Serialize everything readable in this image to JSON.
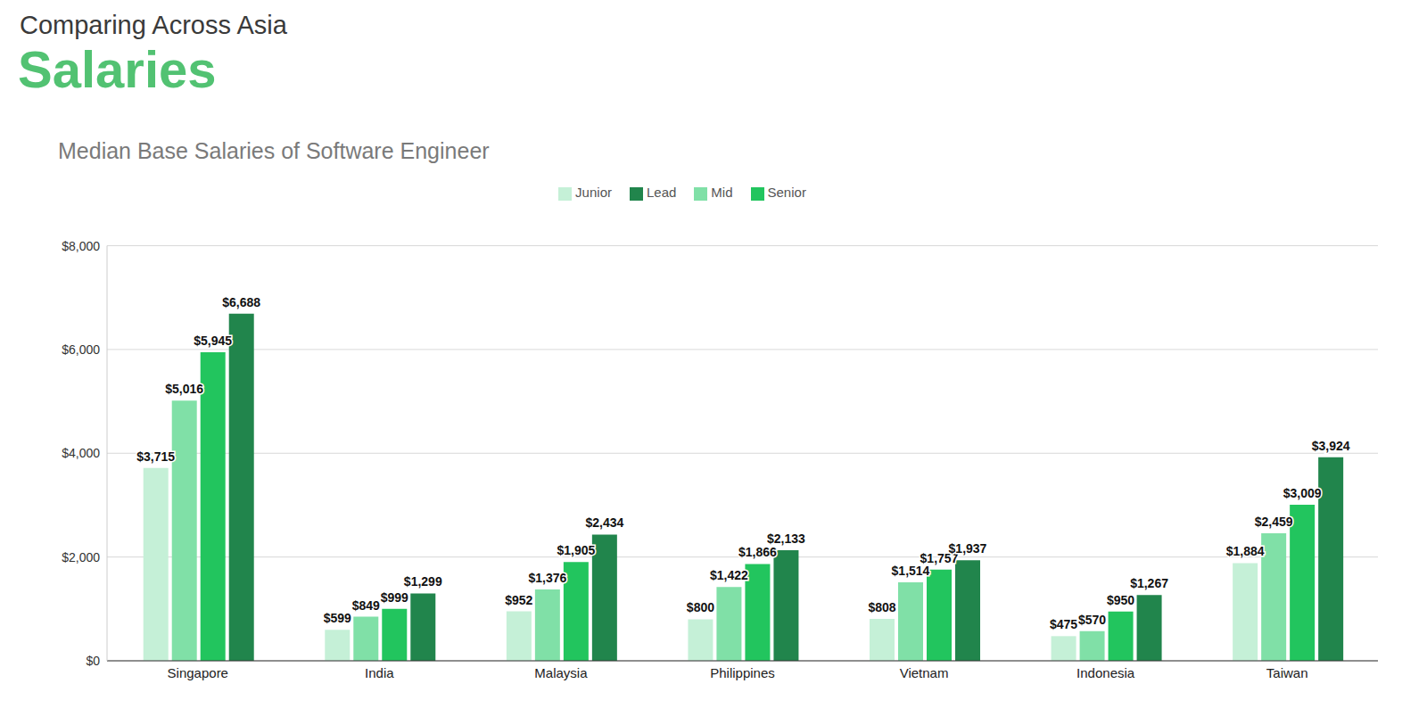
{
  "header": {
    "kicker": "Comparing Across Asia",
    "title": "Salaries"
  },
  "chart_data": {
    "type": "bar",
    "title": "Median Base Salaries of Software Engineer",
    "categories": [
      "Singapore",
      "India",
      "Malaysia",
      "Philippines",
      "Vietnam",
      "Indonesia",
      "Taiwan"
    ],
    "series": [
      {
        "name": "Junior",
        "color": "#c5f0d7",
        "values": [
          3715,
          599,
          952,
          800,
          808,
          475,
          1884
        ],
        "value_labels": [
          "$3,715",
          "$599",
          "$952",
          "$800",
          "$808",
          "$475",
          "$1,884"
        ]
      },
      {
        "name": "Mid",
        "color": "#80e0a7",
        "values": [
          5016,
          849,
          1376,
          1422,
          1514,
          570,
          2459
        ],
        "value_labels": [
          "$5,016",
          "$849",
          "$1,376",
          "$1,422",
          "$1,514",
          "$570",
          "$2,459"
        ]
      },
      {
        "name": "Senior",
        "color": "#22c55e",
        "values": [
          5945,
          999,
          1905,
          1866,
          1757,
          950,
          3009
        ],
        "value_labels": [
          "$5,945",
          "$999",
          "$1,905",
          "$1,866",
          "$1,757",
          "$950",
          "$3,009"
        ]
      },
      {
        "name": "Lead",
        "color": "#21854c",
        "values": [
          6688,
          1299,
          2434,
          2133,
          1937,
          1267,
          3924
        ],
        "value_labels": [
          "$6,688",
          "$1,299",
          "$2,434",
          "$2,133",
          "$1,937",
          "$1,267",
          "$3,924"
        ]
      }
    ],
    "ylim": [
      0,
      8000
    ],
    "yticks": [
      {
        "value": 0,
        "label": "$0"
      },
      {
        "value": 2000,
        "label": "$2,000"
      },
      {
        "value": 4000,
        "label": "$4,000"
      },
      {
        "value": 6000,
        "label": "$6,000"
      },
      {
        "value": 8000,
        "label": "$8,000"
      }
    ],
    "grid": true,
    "legend": "top",
    "data_labels": true
  }
}
